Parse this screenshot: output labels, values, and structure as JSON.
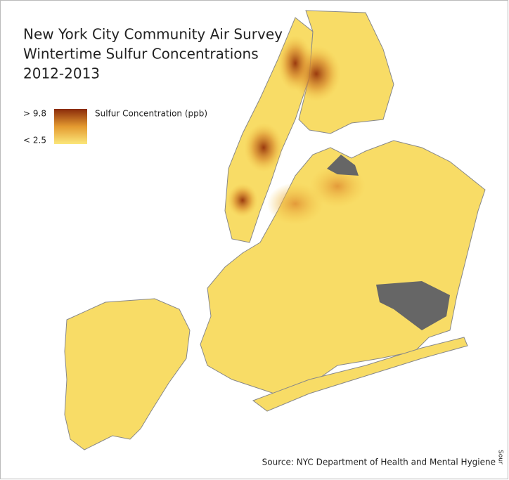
{
  "title": [
    "New York City Community Air Survey",
    "Wintertime Sulfur Concentrations",
    "2012-2013"
  ],
  "legend": {
    "high": "> 9.8",
    "low": "< 2.5",
    "label": "Sulfur Concentration (ppb)"
  },
  "source": "Source: NYC Department of Health and Mental Hygiene",
  "edge_label": "Sour"
}
